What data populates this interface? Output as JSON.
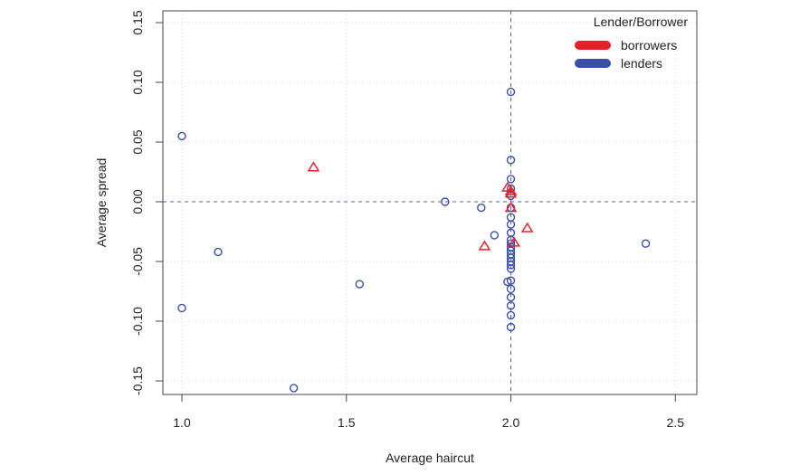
{
  "chart_data": {
    "type": "scatter",
    "title": "",
    "xlabel": "Average haircut",
    "ylabel": "Average spread",
    "xlim": [
      0.95,
      2.57
    ],
    "ylim": [
      -0.16,
      0.16
    ],
    "xticks": [
      "1.0",
      "1.5",
      "2.0",
      "2.5"
    ],
    "xtick_values": [
      1.0,
      1.5,
      2.0,
      2.5
    ],
    "yticks": [
      "-0.15",
      "-0.10",
      "-0.05",
      "0.00",
      "0.05",
      "0.10",
      "0.15"
    ],
    "ytick_values": [
      -0.15,
      -0.1,
      -0.05,
      0.0,
      0.05,
      0.1,
      0.15
    ],
    "grid": true,
    "reference_lines": {
      "x": 2.0,
      "y": 0.0
    },
    "legend": {
      "title": "Lender/Borrower",
      "placement": "top-right"
    },
    "series": [
      {
        "name": "borrowers",
        "color": "#e8202a",
        "marker": "triangle",
        "points": [
          [
            1.4,
            0.029
          ],
          [
            1.99,
            0.012
          ],
          [
            2.0,
            0.009
          ],
          [
            2.0,
            0.007
          ],
          [
            2.0,
            -0.005
          ],
          [
            2.05,
            -0.022
          ],
          [
            2.01,
            -0.034
          ],
          [
            1.92,
            -0.037
          ]
        ]
      },
      {
        "name": "lenders",
        "color": "#3a4fa8",
        "marker": "circle",
        "points": [
          [
            1.0,
            0.055
          ],
          [
            1.0,
            -0.089
          ],
          [
            1.11,
            -0.042
          ],
          [
            1.34,
            -0.156
          ],
          [
            1.54,
            -0.069
          ],
          [
            1.8,
            0.0
          ],
          [
            1.91,
            -0.005
          ],
          [
            1.95,
            -0.028
          ],
          [
            1.99,
            -0.067
          ],
          [
            2.41,
            -0.035
          ],
          [
            2.0,
            0.092
          ],
          [
            2.0,
            0.035
          ],
          [
            2.0,
            0.019
          ],
          [
            2.0,
            0.011
          ],
          [
            2.0,
            0.005
          ],
          [
            2.0,
            -0.005
          ],
          [
            2.0,
            -0.013
          ],
          [
            2.0,
            -0.019
          ],
          [
            2.0,
            -0.026
          ],
          [
            2.0,
            -0.032
          ],
          [
            2.0,
            -0.035
          ],
          [
            2.0,
            -0.038
          ],
          [
            2.0,
            -0.041
          ],
          [
            2.0,
            -0.044
          ],
          [
            2.0,
            -0.047
          ],
          [
            2.0,
            -0.05
          ],
          [
            2.0,
            -0.053
          ],
          [
            2.0,
            -0.056
          ],
          [
            2.0,
            -0.066
          ],
          [
            2.0,
            -0.073
          ],
          [
            2.0,
            -0.08
          ],
          [
            2.0,
            -0.087
          ],
          [
            2.0,
            -0.095
          ],
          [
            2.0,
            -0.105
          ]
        ]
      }
    ]
  }
}
